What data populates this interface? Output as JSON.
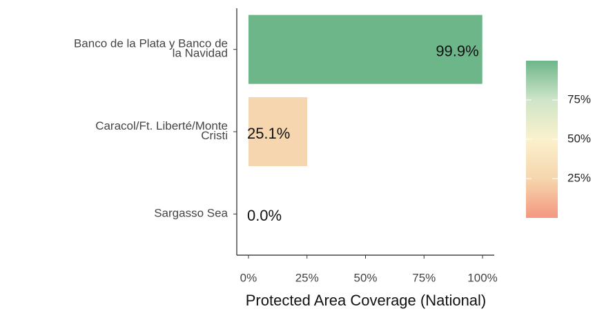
{
  "chart_data": {
    "type": "bar",
    "orientation": "horizontal",
    "categories": [
      "Banco de la Plata y Banco de\nla Navidad",
      "Caracol/Ft. Liberté/Monte\nCristi",
      "Sargasso Sea"
    ],
    "values": [
      99.9,
      25.1,
      0.0
    ],
    "value_labels": [
      "99.9%",
      "25.1%",
      "0.0%"
    ],
    "xlabel": "Protected Area Coverage (National)",
    "xlim": [
      -5,
      105
    ],
    "xticks": [
      {
        "value": 0,
        "label": "0%"
      },
      {
        "value": 25,
        "label": "25%"
      },
      {
        "value": 50,
        "label": "50%"
      },
      {
        "value": 75,
        "label": "75%"
      },
      {
        "value": 100,
        "label": "100%"
      }
    ],
    "colorscale": [
      {
        "value": 0,
        "color": "#f4987f"
      },
      {
        "value": 25,
        "color": "#f6d6ae"
      },
      {
        "value": 50,
        "color": "#fbf1cc"
      },
      {
        "value": 75,
        "color": "#cfe5c9"
      },
      {
        "value": 100,
        "color": "#6db689"
      }
    ],
    "colorbar_lim": [
      0,
      100
    ],
    "colorbar_ticks": [
      {
        "value": 25,
        "label": "25%"
      },
      {
        "value": 50,
        "label": "50%"
      },
      {
        "value": 75,
        "label": "75%"
      }
    ],
    "grid": false
  }
}
